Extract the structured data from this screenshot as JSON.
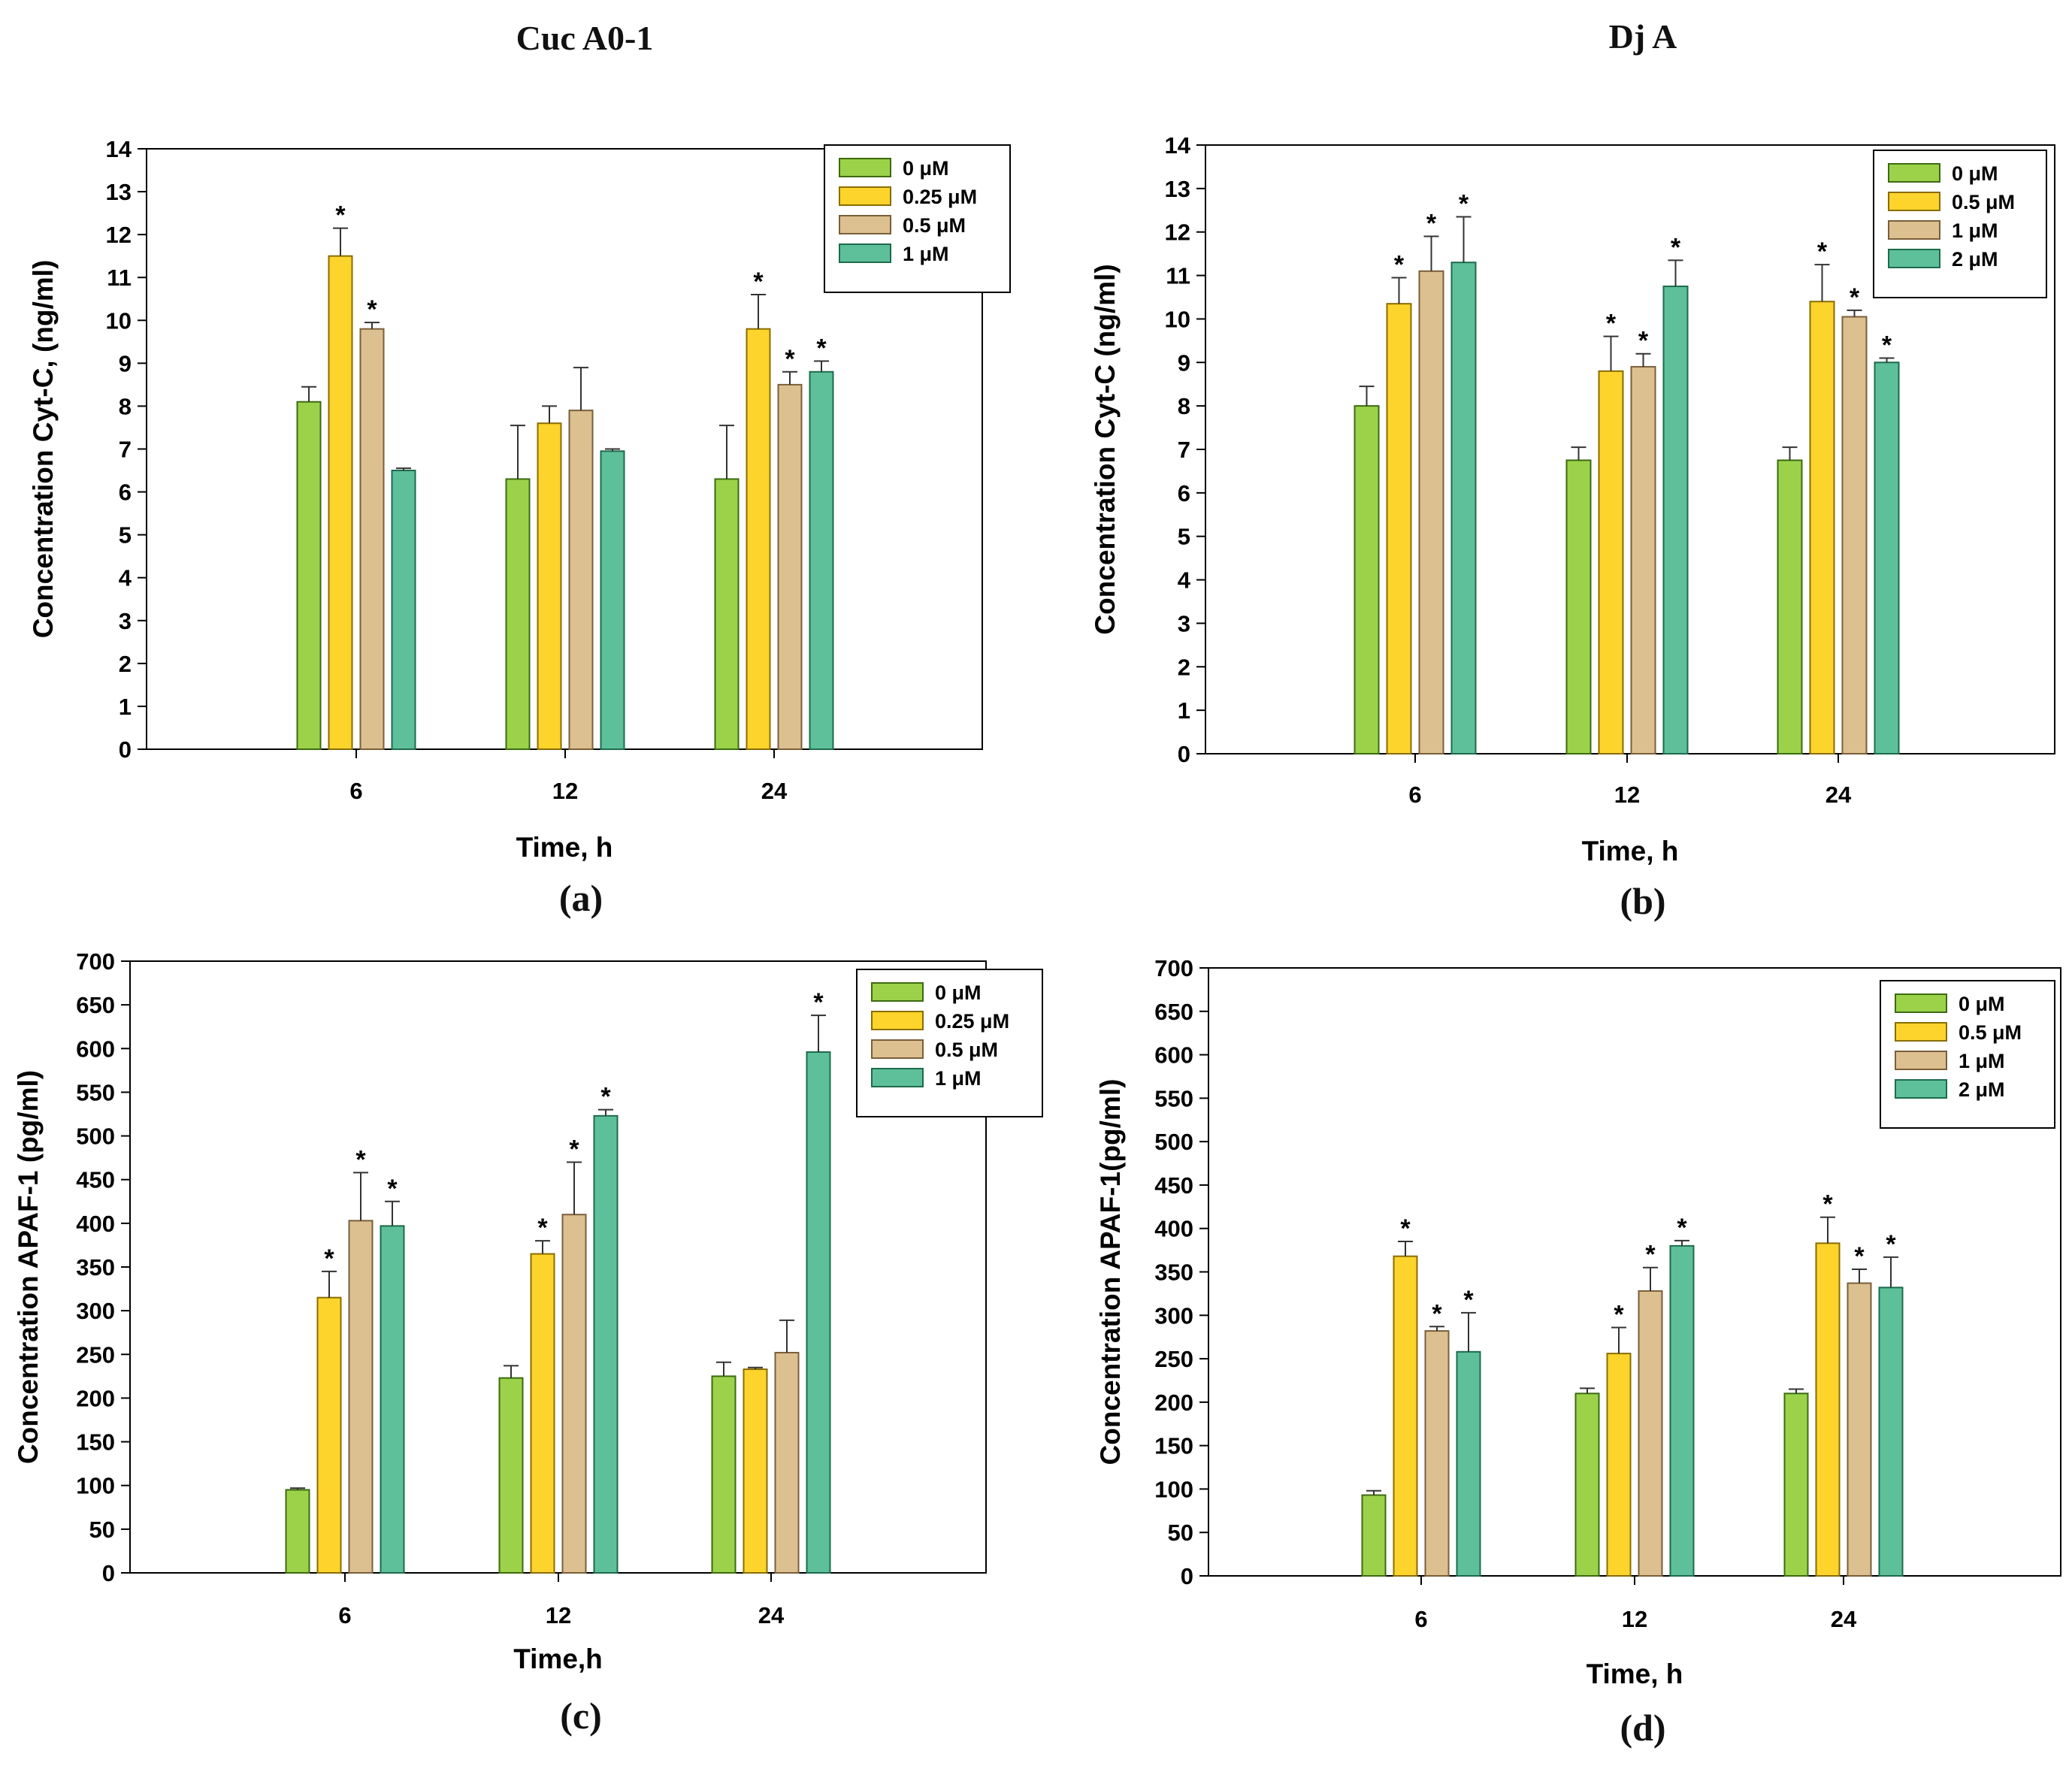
{
  "figure": {
    "column_titles": [
      "Cuc A0-1",
      "Dj A"
    ]
  },
  "colors": {
    "series": [
      "#9bd24a",
      "#fcd42c",
      "#dcc090",
      "#5ec09a"
    ],
    "series_stroke": [
      "#3d6b10",
      "#8a6d00",
      "#7a5f3a",
      "#1d6b4c"
    ]
  },
  "chart_data": [
    {
      "type": "bar",
      "panel_label": "(a)",
      "title": "Cuc A0-1",
      "xlabel": "Time, h",
      "ylabel": "Concentration Cyt-C, (ng/ml)",
      "categories": [
        "6",
        "12",
        "24"
      ],
      "ylim": [
        0,
        14
      ],
      "yticks": [
        "0",
        "1",
        "2",
        "3",
        "4",
        "5",
        "6",
        "7",
        "8",
        "9",
        "10",
        "11",
        "12",
        "13",
        "14"
      ],
      "legend": "top-right",
      "grid": false,
      "series": [
        {
          "name": "0 μM",
          "values": [
            8.1,
            6.3,
            6.3
          ],
          "errors": [
            0.35,
            1.25,
            1.25
          ],
          "significant": [
            false,
            false,
            false
          ]
        },
        {
          "name": "0.25 μM",
          "values": [
            11.5,
            7.6,
            9.8
          ],
          "errors": [
            0.65,
            0.4,
            0.8
          ],
          "significant": [
            true,
            false,
            true
          ]
        },
        {
          "name": "0.5 μM",
          "values": [
            9.8,
            7.9,
            8.5
          ],
          "errors": [
            0.15,
            1.0,
            0.3
          ],
          "significant": [
            true,
            false,
            true
          ]
        },
        {
          "name": "1 μM",
          "values": [
            6.5,
            6.95,
            8.8
          ],
          "errors": [
            0.05,
            0.05,
            0.25
          ],
          "significant": [
            false,
            false,
            true
          ]
        }
      ]
    },
    {
      "type": "bar",
      "panel_label": "(b)",
      "title": "Dj A",
      "xlabel": "Time, h",
      "ylabel": "Concentration Cyt-C (ng/ml)",
      "categories": [
        "6",
        "12",
        "24"
      ],
      "ylim": [
        0,
        14
      ],
      "yticks": [
        "0",
        "1",
        "2",
        "3",
        "4",
        "5",
        "6",
        "7",
        "8",
        "9",
        "10",
        "11",
        "12",
        "13",
        "14"
      ],
      "legend": "top-right",
      "grid": false,
      "series": [
        {
          "name": "0 μM",
          "values": [
            8.0,
            6.75,
            6.75
          ],
          "errors": [
            0.45,
            0.3,
            0.3
          ],
          "significant": [
            false,
            false,
            false
          ]
        },
        {
          "name": "0.5 μM",
          "values": [
            10.35,
            8.8,
            10.4
          ],
          "errors": [
            0.6,
            0.8,
            0.85
          ],
          "significant": [
            true,
            true,
            true
          ]
        },
        {
          "name": "1 μM",
          "values": [
            11.1,
            8.9,
            10.05
          ],
          "errors": [
            0.8,
            0.3,
            0.15
          ],
          "significant": [
            true,
            true,
            true
          ]
        },
        {
          "name": "2 μM",
          "values": [
            11.3,
            10.75,
            9.0
          ],
          "errors": [
            1.05,
            0.6,
            0.1
          ],
          "significant": [
            true,
            true,
            true
          ]
        }
      ]
    },
    {
      "type": "bar",
      "panel_label": "(c)",
      "title": "",
      "xlabel": "Time,h",
      "ylabel": "Concentration APAF-1 (pg/ml)",
      "categories": [
        "6",
        "12",
        "24"
      ],
      "ylim": [
        0,
        700
      ],
      "yticks": [
        "0",
        "50",
        "100",
        "150",
        "200",
        "250",
        "300",
        "350",
        "400",
        "450",
        "500",
        "550",
        "600",
        "650",
        "700"
      ],
      "legend": "top-right",
      "grid": false,
      "series": [
        {
          "name": "0 μM",
          "values": [
            95,
            223,
            225
          ],
          "errors": [
            2,
            14,
            16
          ],
          "significant": [
            false,
            false,
            false
          ]
        },
        {
          "name": "0.25 μM",
          "values": [
            315,
            365,
            233
          ],
          "errors": [
            30,
            15,
            2
          ],
          "significant": [
            true,
            true,
            false
          ]
        },
        {
          "name": "0.5 μM",
          "values": [
            403,
            410,
            252
          ],
          "errors": [
            55,
            60,
            37
          ],
          "significant": [
            true,
            true,
            false
          ]
        },
        {
          "name": "1 μM",
          "values": [
            397,
            523,
            596
          ],
          "errors": [
            28,
            7,
            42
          ],
          "significant": [
            true,
            true,
            true
          ]
        }
      ]
    },
    {
      "type": "bar",
      "panel_label": "(d)",
      "title": "",
      "xlabel": "Time, h",
      "ylabel": "Concentration APAF-1(pg/ml)",
      "categories": [
        "6",
        "12",
        "24"
      ],
      "ylim": [
        0,
        700
      ],
      "yticks": [
        "0",
        "50",
        "100",
        "150",
        "200",
        "250",
        "300",
        "350",
        "400",
        "450",
        "500",
        "550",
        "600",
        "650",
        "700"
      ],
      "legend": "top-right",
      "grid": false,
      "series": [
        {
          "name": "0 μM",
          "values": [
            93,
            210,
            210
          ],
          "errors": [
            5,
            6,
            5
          ],
          "significant": [
            false,
            false,
            false
          ]
        },
        {
          "name": "0.5 μM",
          "values": [
            368,
            256,
            383
          ],
          "errors": [
            17,
            30,
            30
          ],
          "significant": [
            true,
            true,
            true
          ]
        },
        {
          "name": "1 μM",
          "values": [
            282,
            328,
            337
          ],
          "errors": [
            5,
            27,
            16
          ],
          "significant": [
            true,
            true,
            true
          ]
        },
        {
          "name": "2 μM",
          "values": [
            258,
            380,
            332
          ],
          "errors": [
            45,
            6,
            35
          ],
          "significant": [
            true,
            true,
            true
          ]
        }
      ]
    }
  ]
}
